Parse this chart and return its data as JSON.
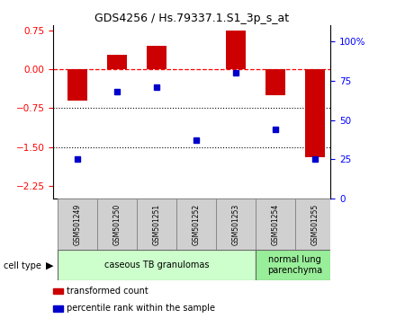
{
  "title": "GDS4256 / Hs.79337.1.S1_3p_s_at",
  "samples": [
    "GSM501249",
    "GSM501250",
    "GSM501251",
    "GSM501252",
    "GSM501253",
    "GSM501254",
    "GSM501255"
  ],
  "transformed_count": [
    -0.6,
    0.28,
    0.45,
    0.0,
    0.75,
    -0.5,
    -1.7
  ],
  "percentile_rank": [
    25,
    68,
    71,
    37,
    80,
    44,
    25
  ],
  "ylim_left": [
    -2.5,
    0.85
  ],
  "ylim_right": [
    0,
    110
  ],
  "yticks_left": [
    0.75,
    0,
    -0.75,
    -1.5,
    -2.25
  ],
  "yticks_right": [
    100,
    75,
    50,
    25,
    0
  ],
  "ytick_labels_right": [
    "100%",
    "75",
    "50",
    "25",
    "0"
  ],
  "bar_color": "#cc0000",
  "dot_color": "#0000cc",
  "hline_y": 0,
  "dotted_lines": [
    -0.75,
    -1.5
  ],
  "cell_type_groups": [
    {
      "label": "caseous TB granulomas",
      "indices": [
        0,
        1,
        2,
        3,
        4
      ],
      "color": "#ccffcc"
    },
    {
      "label": "normal lung\nparenchyma",
      "indices": [
        5,
        6
      ],
      "color": "#99ee99"
    }
  ],
  "legend_entries": [
    "transformed count",
    "percentile rank within the sample"
  ],
  "cell_type_label": "cell type",
  "sample_box_color": "#d0d0d0",
  "bar_width": 0.5,
  "xlim": [
    -0.6,
    6.4
  ]
}
